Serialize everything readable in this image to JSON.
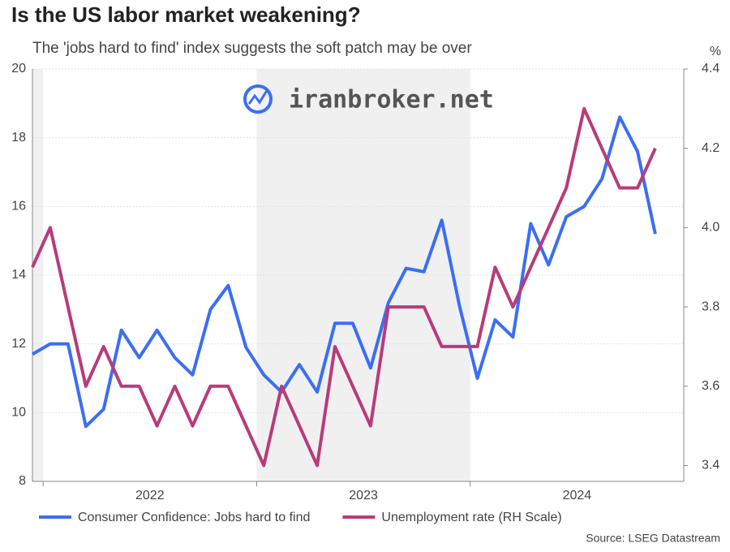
{
  "chart_data": {
    "type": "line",
    "title": "Is the US labor market weakening?",
    "subtitle": "The 'jobs hard to find' index suggests the soft patch may be over",
    "watermark": "iranbroker.net",
    "y2_unit": "%",
    "source": "Source: LSEG Datastream",
    "categories": [
      null,
      null,
      null,
      null,
      null,
      null,
      null,
      null,
      null,
      null,
      null,
      null,
      null,
      null,
      null,
      null,
      null,
      null,
      null,
      null,
      null,
      null,
      null,
      null,
      null,
      null,
      null,
      null,
      null,
      null,
      null,
      null,
      null,
      null,
      null,
      null
    ],
    "year_labels": [
      "2022",
      "2023",
      "2024"
    ],
    "ylim": [
      8,
      20
    ],
    "yticks": [
      8,
      10,
      12,
      14,
      16,
      18,
      20
    ],
    "y2lim": [
      3.36,
      4.4
    ],
    "y2ticks": [
      {
        "value": 3.4,
        "label": "3.4"
      },
      {
        "value": 3.6,
        "label": "3.6"
      },
      {
        "value": 3.8,
        "label": "3.8"
      },
      {
        "value": 4.0,
        "label": "4.0"
      },
      {
        "value": 4.2,
        "label": "4.2"
      },
      {
        "value": 4.4,
        "label": "4.4"
      }
    ],
    "grid": true,
    "series": [
      {
        "name": "Consumer Confidence: Jobs hard to find",
        "color": "#3b6ef5",
        "values": [
          11.7,
          12.0,
          12.0,
          9.6,
          10.1,
          12.4,
          11.6,
          12.4,
          11.6,
          11.1,
          13.0,
          13.7,
          11.9,
          11.1,
          10.6,
          11.4,
          10.6,
          12.6,
          12.6,
          11.3,
          13.2,
          14.2,
          14.1,
          15.6,
          13.1,
          11.0,
          12.7,
          12.2,
          15.5,
          14.3,
          15.7,
          16.0,
          16.8,
          18.6,
          17.6,
          15.2
        ]
      },
      {
        "name": "Unemployment rate (RH Scale)",
        "color": "#b83b7a",
        "axis": "y2",
        "values": [
          3.9,
          4.0,
          3.8,
          3.6,
          3.7,
          3.6,
          3.6,
          3.5,
          3.6,
          3.5,
          3.6,
          3.6,
          3.5,
          3.4,
          3.6,
          3.5,
          3.4,
          3.7,
          3.6,
          3.5,
          3.8,
          3.8,
          3.8,
          3.7,
          3.7,
          3.7,
          3.9,
          3.8,
          3.9,
          4.0,
          4.1,
          4.3,
          4.2,
          4.1,
          4.1,
          4.2
        ]
      }
    ]
  }
}
